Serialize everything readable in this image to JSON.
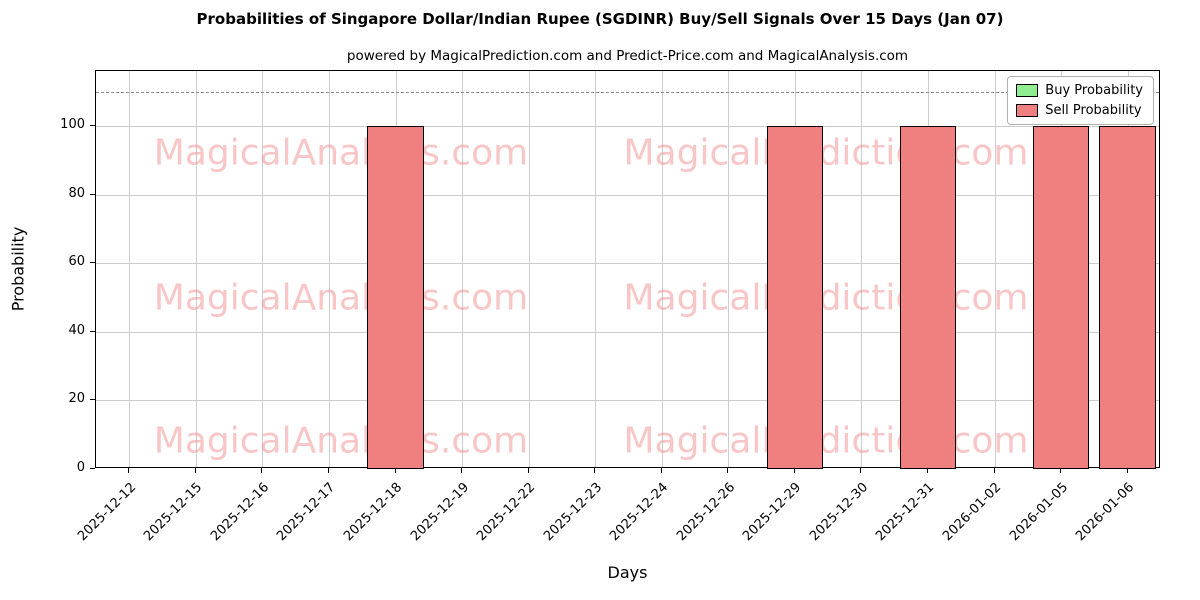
{
  "title": "Probabilities of Singapore Dollar/Indian Rupee (SGDINR) Buy/Sell Signals Over 15 Days (Jan 07)",
  "subtitle": "powered by MagicalPrediction.com and Predict-Price.com and MagicalAnalysis.com",
  "axes": {
    "xlabel": "Days",
    "ylabel": "Probability"
  },
  "watermark": {
    "left_text": "MagicalAnalysis.com",
    "right_text": "MagicalPrediction.com",
    "rows": 3
  },
  "chart_data": {
    "type": "bar",
    "title": "Probabilities of Singapore Dollar/Indian Rupee (SGDINR) Buy/Sell Signals Over 15 Days (Jan 07)",
    "subtitle": "powered by MagicalPrediction.com and Predict-Price.com and MagicalAnalysis.com",
    "xlabel": "Days",
    "ylabel": "Probability",
    "categories": [
      "2025-12-12",
      "2025-12-15",
      "2025-12-16",
      "2025-12-17",
      "2025-12-18",
      "2025-12-19",
      "2025-12-22",
      "2025-12-23",
      "2025-12-24",
      "2025-12-26",
      "2025-12-29",
      "2025-12-30",
      "2025-12-31",
      "2026-01-02",
      "2026-01-05",
      "2026-01-06"
    ],
    "series": [
      {
        "name": "Buy Probability",
        "color": "#90ee90",
        "values": [
          0,
          0,
          0,
          0,
          0,
          0,
          0,
          0,
          0,
          0,
          0,
          0,
          0,
          0,
          0,
          0
        ]
      },
      {
        "name": "Sell Probability",
        "color": "#f08080",
        "values": [
          0,
          0,
          0,
          0,
          100,
          0,
          0,
          0,
          0,
          0,
          100,
          0,
          100,
          0,
          100,
          100
        ]
      }
    ],
    "yticks": [
      0,
      20,
      40,
      60,
      80,
      100
    ],
    "ylim": [
      0,
      116
    ],
    "dashed_reference_line_y": 110,
    "grid": true,
    "legend_position": "upper right"
  }
}
